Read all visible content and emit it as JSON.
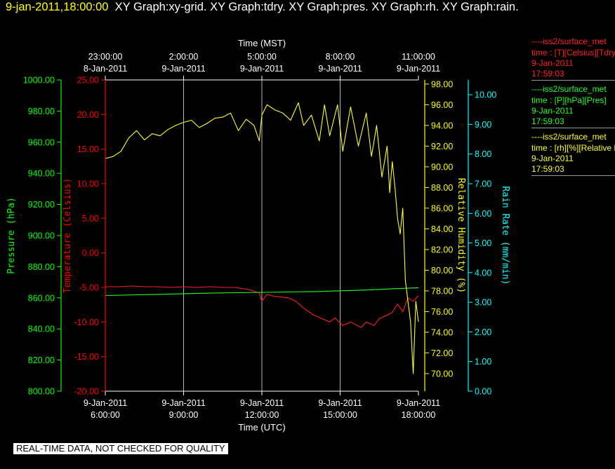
{
  "header": {
    "datetime": "9-jan-2011,18:00:00",
    "graphs": "XY Graph:xy-grid.  XY Graph:tdry.  XY Graph:pres.  XY Graph:rh.  XY Graph:rain."
  },
  "legend": [
    {
      "name": "----iss2/surface_met",
      "field": "time : [T][Celsius][Tdry]",
      "date": "9-Jan-2011",
      "time": "17:59:03",
      "color": "#ff2020"
    },
    {
      "name": "----iss2/surface_met",
      "field": "time : [P][hPa][Pres]",
      "date": "9-Jan-2011",
      "time": "17:59:03",
      "color": "#20ff20"
    },
    {
      "name": "----iss2/surface_met",
      "field": "time : [rh][%][Relative Humidity]",
      "date": "9-Jan-2011",
      "time": "17:59:03",
      "color": "#ffff20"
    }
  ],
  "footer": "REAL-TIME DATA, NOT CHECKED FOR QUALITY",
  "chart_data": {
    "type": "line",
    "grid": true,
    "x_top": {
      "label": "Time (MST)",
      "ticks": [
        {
          "time": "23:00:00",
          "date": "8-Jan-2011"
        },
        {
          "time": "2:00:00",
          "date": "9-Jan-2011"
        },
        {
          "time": "5:00:00",
          "date": "9-Jan-2011"
        },
        {
          "time": "8:00:00",
          "date": "9-Jan-2011"
        },
        {
          "time": "11:00:00",
          "date": "9-Jan-2011"
        }
      ]
    },
    "x_bottom": {
      "label": "Time (UTC)",
      "range": [
        "6:00:00",
        "18:00:00"
      ],
      "range_hours": [
        6,
        18
      ],
      "ticks": [
        {
          "date": "9-Jan-2011",
          "time": "6:00:00",
          "hour": 6
        },
        {
          "date": "9-Jan-2011",
          "time": "9:00:00",
          "hour": 9
        },
        {
          "date": "9-Jan-2011",
          "time": "12:00:00",
          "hour": 12
        },
        {
          "date": "9-Jan-2011",
          "time": "15:00:00",
          "hour": 15
        },
        {
          "date": "9-Jan-2011",
          "time": "18:00:00",
          "hour": 18
        }
      ]
    },
    "axes": [
      {
        "id": "pressure",
        "label": "Pressure (hPa)",
        "color": "#00ff00",
        "min": 800,
        "max": 1000,
        "ticks": [
          "800.00",
          "820.00",
          "840.00",
          "860.00",
          "880.00",
          "900.00",
          "920.00",
          "940.00",
          "960.00",
          "980.00",
          "1000.00"
        ]
      },
      {
        "id": "temperature",
        "label": "Temperature (Celsius)",
        "color": "#ff0000",
        "min": -20,
        "max": 25,
        "ticks": [
          "-20.00",
          "-15.00",
          "-10.00",
          "-5.00",
          "0.00",
          "5.00",
          "10.00",
          "15.00",
          "20.00",
          "25.00"
        ]
      },
      {
        "id": "rh",
        "label": "Relative Humidity (%)",
        "color": "#ffff00",
        "min": 68.3,
        "max": 98.4,
        "ticks": [
          "70.00",
          "72.00",
          "74.00",
          "76.00",
          "78.00",
          "80.00",
          "82.00",
          "84.00",
          "86.00",
          "88.00",
          "90.00",
          "92.00",
          "94.00",
          "96.00",
          "98.00"
        ]
      },
      {
        "id": "rain",
        "label": "Rain Rate (mm/min)",
        "color": "#00ffff",
        "min": 0,
        "max": 10.5,
        "ticks": [
          "0.00",
          "1.00",
          "2.00",
          "3.00",
          "4.00",
          "5.00",
          "6.00",
          "7.00",
          "8.00",
          "9.00",
          "10.00"
        ]
      }
    ],
    "series": [
      {
        "name": "Tdry",
        "axis": "temperature",
        "color": "#ff2020",
        "x": [
          6.0,
          6.5,
          7.0,
          7.5,
          8.0,
          8.5,
          9.0,
          9.5,
          10.0,
          10.5,
          11.0,
          11.5,
          11.9,
          12.0,
          12.2,
          12.5,
          13.0,
          13.3,
          13.6,
          14.0,
          14.3,
          14.6,
          14.8,
          15.1,
          15.4,
          15.8,
          16.0,
          16.3,
          16.5,
          16.8,
          17.0,
          17.2,
          17.4,
          17.6,
          17.8,
          18.0
        ],
        "y": [
          -4.9,
          -4.9,
          -4.8,
          -4.9,
          -4.9,
          -5.0,
          -4.9,
          -5.0,
          -4.9,
          -5.0,
          -5.0,
          -5.3,
          -5.8,
          -7.0,
          -6.0,
          -6.3,
          -6.5,
          -7.0,
          -8.0,
          -9.0,
          -9.5,
          -10.0,
          -9.4,
          -10.5,
          -10.0,
          -10.8,
          -10.0,
          -10.5,
          -9.5,
          -9.0,
          -8.6,
          -7.4,
          -8.5,
          -6.5,
          -7.0,
          -6.2
        ]
      },
      {
        "name": "Pres",
        "axis": "pressure",
        "color": "#20ff20",
        "x": [
          6.0,
          8.0,
          10.0,
          12.0,
          14.0,
          16.0,
          17.0,
          18.0
        ],
        "y": [
          861.5,
          862.2,
          863.0,
          863.5,
          864.0,
          865.0,
          865.8,
          866.5
        ]
      },
      {
        "name": "RH",
        "axis": "rh",
        "color": "#ffff20",
        "x": [
          6.0,
          6.3,
          6.6,
          6.9,
          7.2,
          7.5,
          7.8,
          8.1,
          8.4,
          8.7,
          9.0,
          9.3,
          9.6,
          9.9,
          10.2,
          10.5,
          10.8,
          11.1,
          11.4,
          11.7,
          11.9,
          12.0,
          12.2,
          12.5,
          12.8,
          13.1,
          13.4,
          13.6,
          13.9,
          14.2,
          14.4,
          14.6,
          14.9,
          15.1,
          15.4,
          15.7,
          16.0,
          16.2,
          16.4,
          16.6,
          16.8,
          16.9,
          17.0,
          17.1,
          17.2,
          17.3,
          17.4,
          17.5,
          17.6,
          17.7,
          17.8,
          17.9,
          18.0
        ],
        "y": [
          90.8,
          91.0,
          91.5,
          92.8,
          93.5,
          92.6,
          93.2,
          93.0,
          93.6,
          94.0,
          94.3,
          94.5,
          93.8,
          94.2,
          94.7,
          94.8,
          95.2,
          93.5,
          94.6,
          94.0,
          92.5,
          95.0,
          96.0,
          95.5,
          95.2,
          94.5,
          96.2,
          94.0,
          95.0,
          92.5,
          96.0,
          93.0,
          96.0,
          91.5,
          95.8,
          92.0,
          95.2,
          91.0,
          94.0,
          89.0,
          92.0,
          87.5,
          90.5,
          88.0,
          85.0,
          83.5,
          86.0,
          79.0,
          77.0,
          75.0,
          70.0,
          77.0,
          75.0
        ]
      }
    ]
  }
}
